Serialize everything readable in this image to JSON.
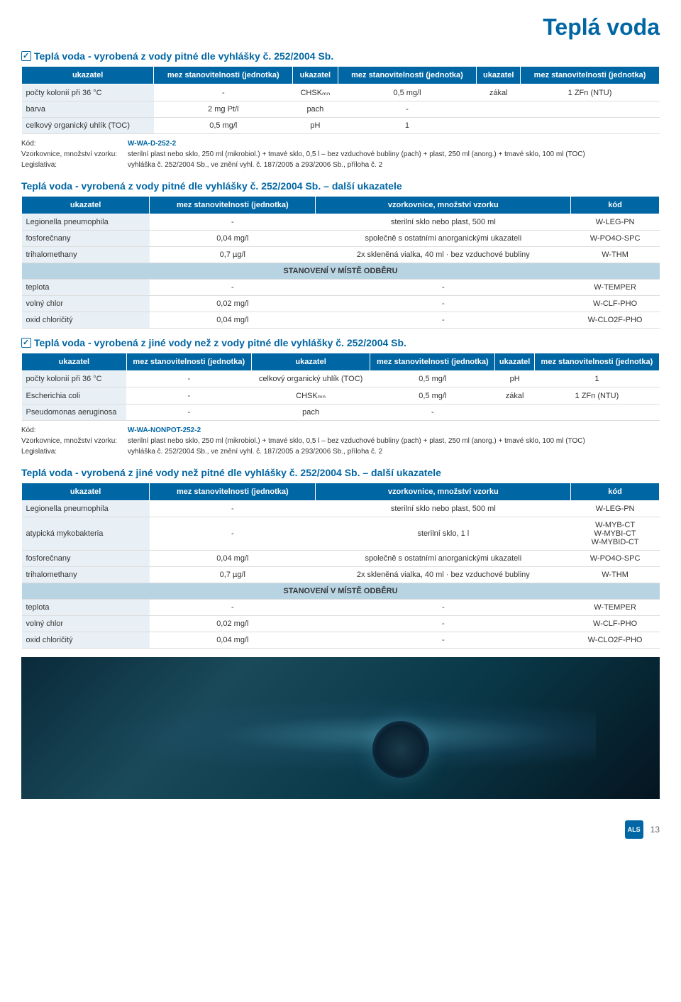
{
  "page_title": "Teplá voda",
  "page_number": "13",
  "logo_text": "ALS",
  "sections": [
    {
      "title": "Teplá voda - vyrobená z vody pitné dle vyhlášky č. 252/2004 Sb.",
      "has_check": true,
      "headers": [
        "ukazatel",
        "mez stanovitelnosti (jednotka)",
        "ukazatel",
        "mez stanovitelnosti (jednotka)",
        "ukazatel",
        "mez stanovitelnosti (jednotka)"
      ],
      "rows": [
        [
          "počty kolonií při 36 °C",
          "-",
          "CHSKₘₙ",
          "0,5 mg/l",
          "zákal",
          "1 ZFn (NTU)"
        ],
        [
          "barva",
          "2 mg Pt/l",
          "pach",
          "-",
          "",
          ""
        ],
        [
          "celkový organický uhlík (TOC)",
          "0,5 mg/l",
          "pH",
          "1",
          "",
          ""
        ]
      ],
      "meta": {
        "kod_label": "Kód:",
        "kod": "W-WA-D-252-2",
        "vzork_label": "Vzorkovnice, množství vzorku:",
        "vzork": "sterilní plast nebo sklo, 250 ml (mikrobiol.) + tmavé sklo, 0,5 l – bez vzduchové bubliny (pach) + plast, 250 ml (anorg.) + tmavé sklo, 100 ml (TOC)",
        "leg_label": "Legislativa:",
        "leg": "vyhláška č. 252/2004 Sb., ve znění vyhl. č. 187/2005 a 293/2006 Sb., příloha č. 2"
      }
    },
    {
      "title": "Teplá voda - vyrobená z vody pitné dle vyhlášky č. 252/2004 Sb. – další ukazatele",
      "has_check": false,
      "headers": [
        "ukazatel",
        "mez stanovitelnosti (jednotka)",
        "vzorkovnice, množství vzorku",
        "kód"
      ],
      "rows": [
        [
          "Legionella pneumophila",
          "-",
          "sterilní sklo nebo plast, 500 ml",
          "W-LEG-PN"
        ],
        [
          "fosforečnany",
          "0,04 mg/l",
          "společně s ostatními anorganickými ukazateli",
          "W-PO4O-SPC"
        ],
        [
          "trihalomethany",
          "0,7 µg/l",
          "2x skleněná vialka, 40 ml · bez vzduchové bubliny",
          "W-THM"
        ]
      ],
      "subheader": "STANOVENÍ V MÍSTĚ ODBĚRU",
      "rows2": [
        [
          "teplota",
          "-",
          "-",
          "W-TEMPER"
        ],
        [
          "volný chlor",
          "0,02 mg/l",
          "-",
          "W-CLF-PHO"
        ],
        [
          "oxid chloričitý",
          "0,04 mg/l",
          "-",
          "W-CLO2F-PHO"
        ]
      ]
    },
    {
      "title": "Teplá voda - vyrobená z jiné vody než z vody pitné dle vyhlášky č. 252/2004 Sb.",
      "has_check": true,
      "headers": [
        "ukazatel",
        "mez stanovitelnosti (jednotka)",
        "ukazatel",
        "mez stanovitelnosti (jednotka)",
        "ukazatel",
        "mez stanovitelnosti (jednotka)"
      ],
      "rows": [
        [
          "počty kolonií při 36 °C",
          "-",
          "celkový organický uhlík (TOC)",
          "0,5 mg/l",
          "pH",
          "1"
        ],
        [
          "Escherichia coli",
          "-",
          "CHSKₘₙ",
          "0,5 mg/l",
          "zákal",
          "1 ZFn (NTU)"
        ],
        [
          "Pseudomonas aeruginosa",
          "-",
          "pach",
          "-",
          "",
          ""
        ]
      ],
      "meta": {
        "kod_label": "Kód:",
        "kod": "W-WA-NONPOT-252-2",
        "vzork_label": "Vzorkovnice, množství vzorku:",
        "vzork": "sterilní plast nebo sklo, 250 ml (mikrobiol.) + tmavé sklo, 0,5 l – bez vzduchové bubliny (pach) + plast, 250 ml (anorg.) + tmavé sklo, 100 ml (TOC)",
        "leg_label": "Legislativa:",
        "leg": "vyhláška č. 252/2004 Sb., ve znění vyhl. č. 187/2005 a 293/2006 Sb., příloha č. 2"
      }
    },
    {
      "title": "Teplá voda - vyrobená z jiné vody než pitné dle vyhlášky č. 252/2004 Sb. – další ukazatele",
      "has_check": false,
      "headers": [
        "ukazatel",
        "mez stanovitelnosti (jednotka)",
        "vzorkovnice, množství vzorku",
        "kód"
      ],
      "rows": [
        [
          "Legionella pneumophila",
          "-",
          "sterilní sklo nebo plast, 500 ml",
          "W-LEG-PN"
        ],
        [
          "atypická mykobakteria",
          "-",
          "sterilní sklo, 1 l",
          "W-MYB-CT\nW-MYBI-CT\nW-MYBID-CT"
        ],
        [
          "fosforečnany",
          "0,04 mg/l",
          "společně s ostatními anorganickými ukazateli",
          "W-PO4O-SPC"
        ],
        [
          "trihalomethany",
          "0,7 µg/l",
          "2x skleněná vialka, 40 ml · bez vzduchové bubliny",
          "W-THM"
        ]
      ],
      "subheader": "STANOVENÍ V MÍSTĚ ODBĚRU",
      "rows2": [
        [
          "teplota",
          "-",
          "-",
          "W-TEMPER"
        ],
        [
          "volný chlor",
          "0,02 mg/l",
          "-",
          "W-CLF-PHO"
        ],
        [
          "oxid chloričitý",
          "0,04 mg/l",
          "-",
          "W-CLO2F-PHO"
        ]
      ]
    }
  ]
}
